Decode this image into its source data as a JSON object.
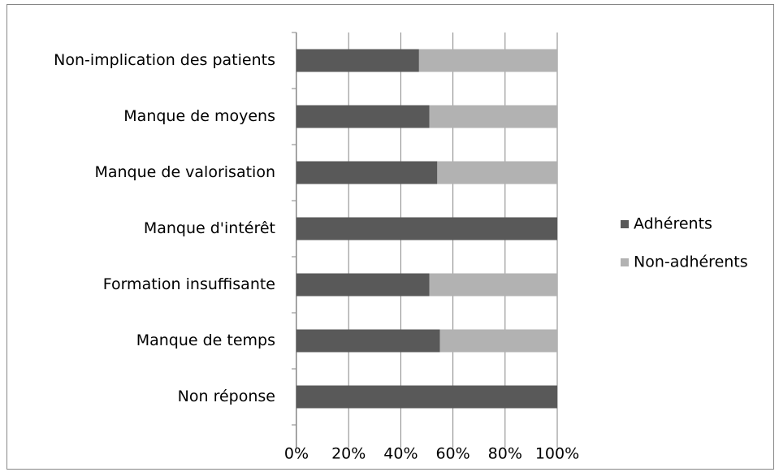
{
  "chart_data": {
    "type": "stacked-bar-horizontal",
    "categories": [
      "Non-implication des patients",
      "Manque de moyens",
      "Manque de valorisation",
      "Manque d'intérêt",
      "Formation insuffisante",
      "Manque de temps",
      "Non réponse"
    ],
    "series": [
      {
        "name": "Adhérents",
        "color": "#595959",
        "values": [
          47,
          51,
          54,
          100,
          51,
          55,
          100
        ]
      },
      {
        "name": "Non-adhérents",
        "color": "#b2b2b2",
        "values": [
          53,
          49,
          46,
          0,
          49,
          45,
          0
        ]
      }
    ],
    "xlim": [
      0,
      100
    ],
    "xticks": [
      {
        "value": 0,
        "label": "0%"
      },
      {
        "value": 20,
        "label": "20%"
      },
      {
        "value": 40,
        "label": "40%"
      },
      {
        "value": 60,
        "label": "60%"
      },
      {
        "value": 80,
        "label": "80%"
      },
      {
        "value": 100,
        "label": "100%"
      }
    ],
    "grid": true,
    "legend": "right"
  }
}
